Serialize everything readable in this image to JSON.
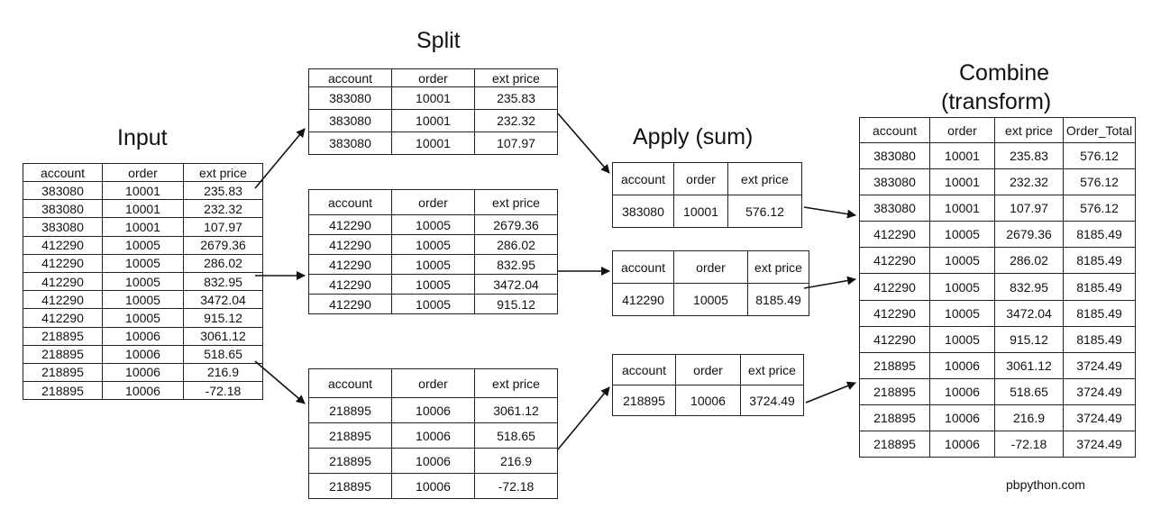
{
  "titles": {
    "split": "Split",
    "input": "Input",
    "apply": "Apply (sum)",
    "combine_line1": "Combine",
    "combine_line2": "(transform)"
  },
  "credit": "pbpython.com",
  "headers3": [
    "account",
    "order",
    "ext price"
  ],
  "headers4": [
    "account",
    "order",
    "ext price",
    "Order_Total"
  ],
  "input": [
    [
      "383080",
      "10001",
      "235.83"
    ],
    [
      "383080",
      "10001",
      "232.32"
    ],
    [
      "383080",
      "10001",
      "107.97"
    ],
    [
      "412290",
      "10005",
      "2679.36"
    ],
    [
      "412290",
      "10005",
      "286.02"
    ],
    [
      "412290",
      "10005",
      "832.95"
    ],
    [
      "412290",
      "10005",
      "3472.04"
    ],
    [
      "412290",
      "10005",
      "915.12"
    ],
    [
      "218895",
      "10006",
      "3061.12"
    ],
    [
      "218895",
      "10006",
      "518.65"
    ],
    [
      "218895",
      "10006",
      "216.9"
    ],
    [
      "218895",
      "10006",
      "-72.18"
    ]
  ],
  "split1": [
    [
      "383080",
      "10001",
      "235.83"
    ],
    [
      "383080",
      "10001",
      "232.32"
    ],
    [
      "383080",
      "10001",
      "107.97"
    ]
  ],
  "split2": [
    [
      "412290",
      "10005",
      "2679.36"
    ],
    [
      "412290",
      "10005",
      "286.02"
    ],
    [
      "412290",
      "10005",
      "832.95"
    ],
    [
      "412290",
      "10005",
      "3472.04"
    ],
    [
      "412290",
      "10005",
      "915.12"
    ]
  ],
  "split3": [
    [
      "218895",
      "10006",
      "3061.12"
    ],
    [
      "218895",
      "10006",
      "518.65"
    ],
    [
      "218895",
      "10006",
      "216.9"
    ],
    [
      "218895",
      "10006",
      "-72.18"
    ]
  ],
  "apply1": [
    [
      "383080",
      "10001",
      "576.12"
    ]
  ],
  "apply2": [
    [
      "412290",
      "10005",
      "8185.49"
    ]
  ],
  "apply3": [
    [
      "218895",
      "10006",
      "3724.49"
    ]
  ],
  "combine": [
    [
      "383080",
      "10001",
      "235.83",
      "576.12"
    ],
    [
      "383080",
      "10001",
      "232.32",
      "576.12"
    ],
    [
      "383080",
      "10001",
      "107.97",
      "576.12"
    ],
    [
      "412290",
      "10005",
      "2679.36",
      "8185.49"
    ],
    [
      "412290",
      "10005",
      "286.02",
      "8185.49"
    ],
    [
      "412290",
      "10005",
      "832.95",
      "8185.49"
    ],
    [
      "412290",
      "10005",
      "3472.04",
      "8185.49"
    ],
    [
      "412290",
      "10005",
      "915.12",
      "8185.49"
    ],
    [
      "218895",
      "10006",
      "3061.12",
      "3724.49"
    ],
    [
      "218895",
      "10006",
      "518.65",
      "3724.49"
    ],
    [
      "218895",
      "10006",
      "216.9",
      "3724.49"
    ],
    [
      "218895",
      "10006",
      "-72.18",
      "3724.49"
    ]
  ]
}
